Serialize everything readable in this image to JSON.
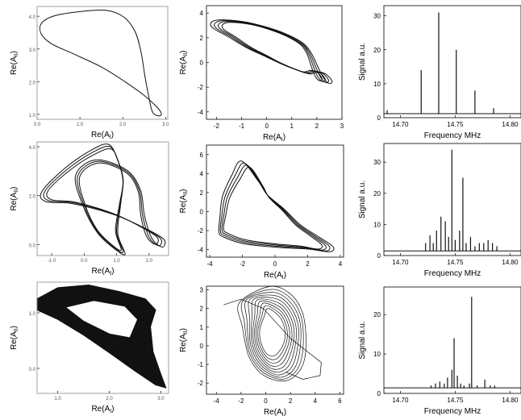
{
  "chart_data": [
    {
      "type": "line",
      "panel": "A1",
      "xlabel": "Re(A_I)",
      "ylabel": "Re(A_II)",
      "xticks": [
        "0.0",
        "1.0",
        "2.0",
        "3.0"
      ],
      "yticks": [
        "1.0",
        "2.0",
        "3.0",
        "4.0"
      ],
      "xlim": [
        0,
        3.05
      ],
      "ylim": [
        0.85,
        4.3
      ],
      "strands": 1,
      "loop": [
        [
          1.62,
          4.18
        ],
        [
          1.05,
          4.15
        ],
        [
          0.42,
          4.02
        ],
        [
          0.1,
          3.78
        ],
        [
          0.1,
          3.45
        ],
        [
          0.35,
          3.15
        ],
        [
          0.85,
          2.85
        ],
        [
          1.5,
          2.45
        ],
        [
          2.05,
          2.0
        ],
        [
          2.5,
          1.58
        ],
        [
          2.8,
          1.22
        ],
        [
          2.9,
          1.03
        ],
        [
          2.85,
          0.95
        ],
        [
          2.7,
          1.06
        ],
        [
          2.62,
          1.45
        ],
        [
          2.52,
          2.15
        ],
        [
          2.42,
          2.95
        ],
        [
          2.28,
          3.55
        ],
        [
          2.02,
          3.98
        ],
        [
          1.62,
          4.18
        ]
      ]
    },
    {
      "type": "line",
      "panel": "B1",
      "xlabel": "Re(A_I)",
      "ylabel": "Re(A_II)",
      "xticks": [
        "-2",
        "-1",
        "0",
        "1",
        "2",
        "3"
      ],
      "yticks": [
        "-4",
        "-2",
        "0",
        "2",
        "4"
      ],
      "xlim": [
        -2.4,
        3.0
      ],
      "ylim": [
        -4.6,
        4.6
      ],
      "strands": 4,
      "loop": [
        [
          -2.0,
          3.1
        ],
        [
          -1.7,
          3.35
        ],
        [
          -0.8,
          3.2
        ],
        [
          0.0,
          2.8
        ],
        [
          0.8,
          2.2
        ],
        [
          1.4,
          1.5
        ],
        [
          1.7,
          0.7
        ],
        [
          1.9,
          -0.3
        ],
        [
          2.1,
          -1.2
        ],
        [
          2.3,
          -1.6
        ],
        [
          2.4,
          -1.4
        ],
        [
          2.2,
          -0.9
        ],
        [
          1.9,
          -0.7
        ],
        [
          1.6,
          -0.85
        ],
        [
          1.2,
          -0.6
        ],
        [
          0.6,
          -0.1
        ],
        [
          0.0,
          0.5
        ],
        [
          -0.7,
          1.2
        ],
        [
          -1.4,
          2.1
        ],
        [
          -1.9,
          2.7
        ],
        [
          -2.0,
          3.1
        ]
      ]
    },
    {
      "type": "bar",
      "panel": "C1",
      "xlabel": "Frequency MHz",
      "ylabel": "Signal a.u.",
      "xticks": [
        "14.70",
        "14.75",
        "14.80"
      ],
      "yticks": [
        "0",
        "10",
        "20",
        "30"
      ],
      "xlim": [
        14.685,
        14.81
      ],
      "ylim": [
        0,
        33
      ],
      "baseline": 1.2,
      "values": [
        [
          14.688,
          2.2
        ],
        [
          14.719,
          14
        ],
        [
          14.735,
          31
        ],
        [
          14.751,
          20
        ],
        [
          14.768,
          8
        ],
        [
          14.785,
          2.8
        ]
      ]
    },
    {
      "type": "line",
      "panel": "A2",
      "xlabel": "Re(A_I)",
      "ylabel": "Re(A_II)",
      "xticks": [
        "-1.0",
        "0.0",
        "1.0",
        "2.0"
      ],
      "yticks": [
        "0.0",
        "2.0",
        "4.0"
      ],
      "xlim": [
        -1.45,
        2.6
      ],
      "ylim": [
        -0.45,
        4.2
      ],
      "strands": 3,
      "loop": [
        [
          0.8,
          4.0
        ],
        [
          0.3,
          3.8
        ],
        [
          -0.5,
          3.1
        ],
        [
          -1.2,
          2.2
        ],
        [
          -1.1,
          1.8
        ],
        [
          -0.3,
          1.7
        ],
        [
          0.9,
          1.25
        ],
        [
          1.8,
          0.7
        ],
        [
          2.35,
          0.25
        ],
        [
          2.3,
          -0.05
        ],
        [
          2.0,
          0.3
        ],
        [
          1.8,
          1.2
        ],
        [
          1.7,
          2.2
        ],
        [
          1.3,
          3.0
        ],
        [
          0.4,
          3.4
        ],
        [
          -0.2,
          2.8
        ],
        [
          0.0,
          1.6
        ],
        [
          0.4,
          0.55
        ],
        [
          0.9,
          -0.1
        ],
        [
          1.2,
          -0.3
        ],
        [
          1.0,
          0.5
        ],
        [
          1.1,
          1.6
        ],
        [
          1.2,
          2.6
        ],
        [
          1.05,
          3.4
        ],
        [
          0.8,
          4.0
        ]
      ]
    },
    {
      "type": "line",
      "panel": "B2",
      "xlabel": "Re(A_I)",
      "ylabel": "Re(A_II)",
      "xticks": [
        "-4",
        "-2",
        "0",
        "2",
        "4"
      ],
      "yticks": [
        "-4",
        "-2",
        "0",
        "2",
        "4",
        "6"
      ],
      "xlim": [
        -4.2,
        4.2
      ],
      "ylim": [
        -4.8,
        7.0
      ],
      "strands": 4,
      "loop": [
        [
          -1.8,
          5.0
        ],
        [
          -2.4,
          3.6
        ],
        [
          -3.0,
          1.5
        ],
        [
          -3.2,
          -0.5
        ],
        [
          -3.3,
          -2.0
        ],
        [
          -3.0,
          -2.5
        ],
        [
          -1.8,
          -3.2
        ],
        [
          0.2,
          -3.6
        ],
        [
          1.8,
          -3.8
        ],
        [
          3.0,
          -4.1
        ],
        [
          3.2,
          -3.6
        ],
        [
          2.4,
          -2.6
        ],
        [
          1.4,
          -1.4
        ],
        [
          0.5,
          0.2
        ],
        [
          -0.4,
          1.6
        ],
        [
          -0.9,
          3.0
        ],
        [
          -1.8,
          5.0
        ]
      ]
    },
    {
      "type": "bar",
      "panel": "C2",
      "xlabel": "Frequency MHz",
      "ylabel": "Signal a.u.",
      "xticks": [
        "14.70",
        "14.75",
        "14.80"
      ],
      "yticks": [
        "0",
        "10",
        "20",
        "30"
      ],
      "xlim": [
        14.685,
        14.81
      ],
      "ylim": [
        0,
        36
      ],
      "baseline": 1.5,
      "values": [
        [
          14.723,
          4
        ],
        [
          14.727,
          6.5
        ],
        [
          14.73,
          4
        ],
        [
          14.733,
          8
        ],
        [
          14.737,
          12.5
        ],
        [
          14.741,
          11
        ],
        [
          14.744,
          6
        ],
        [
          14.747,
          34
        ],
        [
          14.75,
          5
        ],
        [
          14.754,
          8
        ],
        [
          14.757,
          25
        ],
        [
          14.76,
          4
        ],
        [
          14.764,
          6
        ],
        [
          14.768,
          3
        ],
        [
          14.772,
          4
        ],
        [
          14.776,
          4
        ],
        [
          14.78,
          5
        ],
        [
          14.784,
          4
        ],
        [
          14.788,
          3
        ]
      ]
    },
    {
      "type": "line",
      "panel": "A3",
      "xlabel": "Re(A_I)",
      "ylabel": "Re(A_II)",
      "xticks": [
        "1.0",
        "2.0",
        "3.0"
      ],
      "yticks": [
        "0.0",
        "1.0"
      ],
      "xlim": [
        0.6,
        3.15
      ],
      "ylim": [
        -0.45,
        1.55
      ],
      "filled": true,
      "outer": [
        [
          0.6,
          1.25
        ],
        [
          1.0,
          1.45
        ],
        [
          1.6,
          1.5
        ],
        [
          2.2,
          1.38
        ],
        [
          2.7,
          1.25
        ],
        [
          2.9,
          1.05
        ],
        [
          2.8,
          0.75
        ],
        [
          2.85,
          0.3
        ],
        [
          3.0,
          -0.1
        ],
        [
          3.1,
          -0.35
        ],
        [
          2.9,
          -0.3
        ],
        [
          2.5,
          -0.05
        ],
        [
          2.0,
          0.28
        ],
        [
          1.5,
          0.6
        ],
        [
          1.0,
          0.88
        ],
        [
          0.6,
          1.05
        ]
      ],
      "inner": [
        [
          1.15,
          1.1
        ],
        [
          1.7,
          1.22
        ],
        [
          2.3,
          1.12
        ],
        [
          2.55,
          0.88
        ],
        [
          2.4,
          0.55
        ],
        [
          2.0,
          0.62
        ],
        [
          1.5,
          0.85
        ]
      ]
    },
    {
      "type": "line",
      "panel": "B3",
      "xlabel": "Re(A_I)",
      "ylabel": "Re(A_II)",
      "xticks": [
        "-4",
        "-2",
        "0",
        "2",
        "4",
        "6"
      ],
      "yticks": [
        "-2",
        "-1",
        "0",
        "1",
        "2",
        "3"
      ],
      "xlim": [
        -4.8,
        6.3
      ],
      "ylim": [
        -2.6,
        3.2
      ],
      "strands": 10,
      "loop": [
        [
          -0.8,
          2.5
        ],
        [
          1.0,
          2.4
        ],
        [
          2.0,
          1.7
        ],
        [
          2.4,
          0.7
        ],
        [
          2.1,
          -0.5
        ],
        [
          1.5,
          -1.2
        ],
        [
          0.5,
          -1.3
        ],
        [
          -0.6,
          -0.6
        ],
        [
          -1.1,
          0.4
        ],
        [
          -1.0,
          1.6
        ],
        [
          -0.8,
          2.5
        ]
      ],
      "extra": [
        [
          -3.4,
          2.2
        ],
        [
          -2.0,
          2.5
        ],
        [
          -0.2,
          2.0
        ],
        [
          2.0,
          0.4
        ],
        [
          4.5,
          -0.9
        ],
        [
          4.4,
          -1.6
        ],
        [
          3.0,
          -1.8
        ],
        [
          1.6,
          -1.4
        ]
      ]
    },
    {
      "type": "bar",
      "panel": "C3",
      "xlabel": "Frequency MHz",
      "ylabel": "Signal a.u.",
      "xticks": [
        "14.70",
        "14.75",
        "14.80"
      ],
      "yticks": [
        "0",
        "10",
        "20"
      ],
      "xlim": [
        14.685,
        14.81
      ],
      "ylim": [
        0,
        27
      ],
      "baseline": 1.4,
      "values": [
        [
          14.728,
          2
        ],
        [
          14.732,
          2.5
        ],
        [
          14.736,
          3
        ],
        [
          14.74,
          2.5
        ],
        [
          14.743,
          4
        ],
        [
          14.747,
          6
        ],
        [
          14.749,
          14
        ],
        [
          14.752,
          4.5
        ],
        [
          14.755,
          2.5
        ],
        [
          14.758,
          2
        ],
        [
          14.763,
          2.5
        ],
        [
          14.765,
          24.5
        ],
        [
          14.77,
          2
        ],
        [
          14.777,
          3.5
        ],
        [
          14.782,
          2
        ],
        [
          14.786,
          2
        ]
      ]
    }
  ],
  "page_icons": {}
}
